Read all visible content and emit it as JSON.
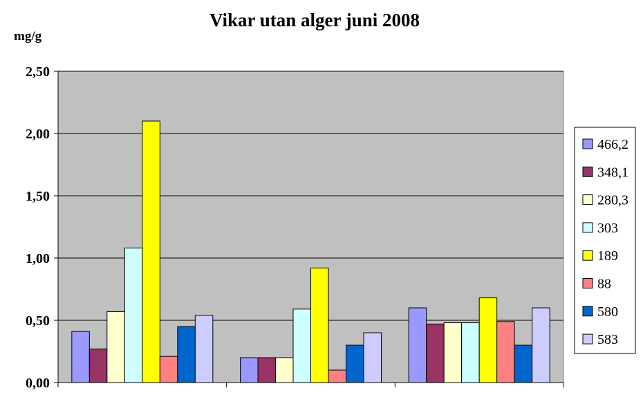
{
  "chart_data": {
    "type": "bar",
    "title": "Vikar utan alger juni 2008",
    "ylabel": "mg/g",
    "xlabel": "",
    "ylim": [
      0,
      2.5
    ],
    "ytick_values": [
      0,
      0.5,
      1.0,
      1.5,
      2.0,
      2.5
    ],
    "ytick_labels": [
      "0,00",
      "0,50",
      "1,00",
      "1,50",
      "2,00",
      "2,50"
    ],
    "grid": true,
    "legend_position": "right",
    "categories": [
      "",
      "",
      ""
    ],
    "series": [
      {
        "name": "466,2",
        "color": "#9999ff",
        "values": [
          0.41,
          0.2,
          0.6
        ]
      },
      {
        "name": "348,1",
        "color": "#993366",
        "values": [
          0.27,
          0.2,
          0.47
        ]
      },
      {
        "name": "280,3",
        "color": "#ffffcc",
        "values": [
          0.57,
          0.2,
          0.48
        ]
      },
      {
        "name": "303",
        "color": "#ccffff",
        "values": [
          1.08,
          0.59,
          0.48
        ]
      },
      {
        "name": "189",
        "color": "#ffff00",
        "values": [
          2.1,
          0.92,
          0.68
        ]
      },
      {
        "name": "88",
        "color": "#ff8080",
        "values": [
          0.21,
          0.1,
          0.49
        ]
      },
      {
        "name": "580",
        "color": "#0066cc",
        "values": [
          0.45,
          0.3,
          0.3
        ]
      },
      {
        "name": "583",
        "color": "#ccccff",
        "values": [
          0.54,
          0.4,
          0.6
        ]
      }
    ],
    "plot_background": "#c0c0c0"
  }
}
